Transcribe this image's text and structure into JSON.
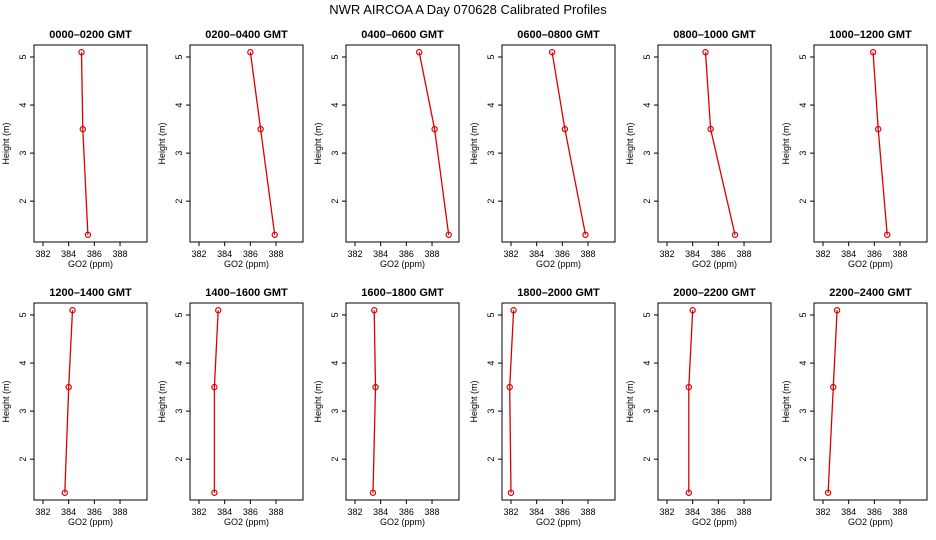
{
  "figure_title": "NWR AIRCOA A  Day 070628  Calibrated Profiles",
  "colors": {
    "line": "#dd0000",
    "axis": "#000000"
  },
  "chart_data": [
    {
      "type": "line",
      "title": "0000–0200 GMT",
      "xlabel": "GO2 (ppm)",
      "ylabel": "Height (m)",
      "xlim": [
        381.3,
        390.1
      ],
      "ylim": [
        1.15,
        5.25
      ],
      "xticks": [
        382,
        384,
        386,
        388
      ],
      "yticks": [
        2,
        3,
        4,
        5
      ],
      "grid": false,
      "x": [
        385.5,
        385.1,
        385.0
      ],
      "y": [
        1.3,
        3.5,
        5.1
      ]
    },
    {
      "type": "line",
      "title": "0200–0400 GMT",
      "xlabel": "GO2 (ppm)",
      "ylabel": "Height (m)",
      "xlim": [
        381.3,
        390.1
      ],
      "ylim": [
        1.15,
        5.25
      ],
      "xticks": [
        382,
        384,
        386,
        388
      ],
      "yticks": [
        2,
        3,
        4,
        5
      ],
      "grid": false,
      "x": [
        387.9,
        386.8,
        386.0
      ],
      "y": [
        1.3,
        3.5,
        5.1
      ]
    },
    {
      "type": "line",
      "title": "0400–0600 GMT",
      "xlabel": "GO2 (ppm)",
      "ylabel": "Height (m)",
      "xlim": [
        381.3,
        390.1
      ],
      "ylim": [
        1.15,
        5.25
      ],
      "xticks": [
        382,
        384,
        386,
        388
      ],
      "yticks": [
        2,
        3,
        4,
        5
      ],
      "grid": false,
      "x": [
        389.3,
        388.2,
        387.0
      ],
      "y": [
        1.3,
        3.5,
        5.1
      ]
    },
    {
      "type": "line",
      "title": "0600–0800 GMT",
      "xlabel": "GO2 (ppm)",
      "ylabel": "Height (m)",
      "xlim": [
        381.3,
        390.1
      ],
      "ylim": [
        1.15,
        5.25
      ],
      "xticks": [
        382,
        384,
        386,
        388
      ],
      "yticks": [
        2,
        3,
        4,
        5
      ],
      "grid": false,
      "x": [
        387.8,
        386.2,
        385.2
      ],
      "y": [
        1.3,
        3.5,
        5.1
      ]
    },
    {
      "type": "line",
      "title": "0800–1000 GMT",
      "xlabel": "GO2 (ppm)",
      "ylabel": "Height (m)",
      "xlim": [
        381.3,
        390.1
      ],
      "ylim": [
        1.15,
        5.25
      ],
      "xticks": [
        382,
        384,
        386,
        388
      ],
      "yticks": [
        2,
        3,
        4,
        5
      ],
      "grid": false,
      "x": [
        387.3,
        385.4,
        385.0
      ],
      "y": [
        1.3,
        3.5,
        5.1
      ]
    },
    {
      "type": "line",
      "title": "1000–1200 GMT",
      "xlabel": "GO2 (ppm)",
      "ylabel": "Height (m)",
      "xlim": [
        381.3,
        390.1
      ],
      "ylim": [
        1.15,
        5.25
      ],
      "xticks": [
        382,
        384,
        386,
        388
      ],
      "yticks": [
        2,
        3,
        4,
        5
      ],
      "grid": false,
      "x": [
        387.0,
        386.3,
        385.9
      ],
      "y": [
        1.3,
        3.5,
        5.1
      ]
    },
    {
      "type": "line",
      "title": "1200–1400 GMT",
      "xlabel": "GO2 (ppm)",
      "ylabel": "Height (m)",
      "xlim": [
        381.3,
        390.1
      ],
      "ylim": [
        1.15,
        5.25
      ],
      "xticks": [
        382,
        384,
        386,
        388
      ],
      "yticks": [
        2,
        3,
        4,
        5
      ],
      "grid": false,
      "x": [
        383.7,
        384.0,
        384.3
      ],
      "y": [
        1.3,
        3.5,
        5.1
      ]
    },
    {
      "type": "line",
      "title": "1400–1600 GMT",
      "xlabel": "GO2 (ppm)",
      "ylabel": "Height (m)",
      "xlim": [
        381.3,
        390.1
      ],
      "ylim": [
        1.15,
        5.25
      ],
      "xticks": [
        382,
        384,
        386,
        388
      ],
      "yticks": [
        2,
        3,
        4,
        5
      ],
      "grid": false,
      "x": [
        383.2,
        383.2,
        383.5
      ],
      "y": [
        1.3,
        3.5,
        5.1
      ]
    },
    {
      "type": "line",
      "title": "1600–1800 GMT",
      "xlabel": "GO2 (ppm)",
      "ylabel": "Height (m)",
      "xlim": [
        381.3,
        390.1
      ],
      "ylim": [
        1.15,
        5.25
      ],
      "xticks": [
        382,
        384,
        386,
        388
      ],
      "yticks": [
        2,
        3,
        4,
        5
      ],
      "grid": false,
      "x": [
        383.4,
        383.6,
        383.5
      ],
      "y": [
        1.3,
        3.5,
        5.1
      ]
    },
    {
      "type": "line",
      "title": "1800–2000 GMT",
      "xlabel": "GO2 (ppm)",
      "ylabel": "Height (m)",
      "xlim": [
        381.3,
        390.1
      ],
      "ylim": [
        1.15,
        5.25
      ],
      "xticks": [
        382,
        384,
        386,
        388
      ],
      "yticks": [
        2,
        3,
        4,
        5
      ],
      "grid": false,
      "x": [
        382.0,
        381.9,
        382.2
      ],
      "y": [
        1.3,
        3.5,
        5.1
      ]
    },
    {
      "type": "line",
      "title": "2000–2200 GMT",
      "xlabel": "GO2 (ppm)",
      "ylabel": "Height (m)",
      "xlim": [
        381.3,
        390.1
      ],
      "ylim": [
        1.15,
        5.25
      ],
      "xticks": [
        382,
        384,
        386,
        388
      ],
      "yticks": [
        2,
        3,
        4,
        5
      ],
      "grid": false,
      "x": [
        383.7,
        383.7,
        384.0
      ],
      "y": [
        1.3,
        3.5,
        5.1
      ]
    },
    {
      "type": "line",
      "title": "2200–2400 GMT",
      "xlabel": "GO2 (ppm)",
      "ylabel": "Height (m)",
      "xlim": [
        381.3,
        390.1
      ],
      "ylim": [
        1.15,
        5.25
      ],
      "xticks": [
        382,
        384,
        386,
        388
      ],
      "yticks": [
        2,
        3,
        4,
        5
      ],
      "grid": false,
      "x": [
        382.4,
        382.8,
        383.1
      ],
      "y": [
        1.3,
        3.5,
        5.1
      ]
    }
  ]
}
